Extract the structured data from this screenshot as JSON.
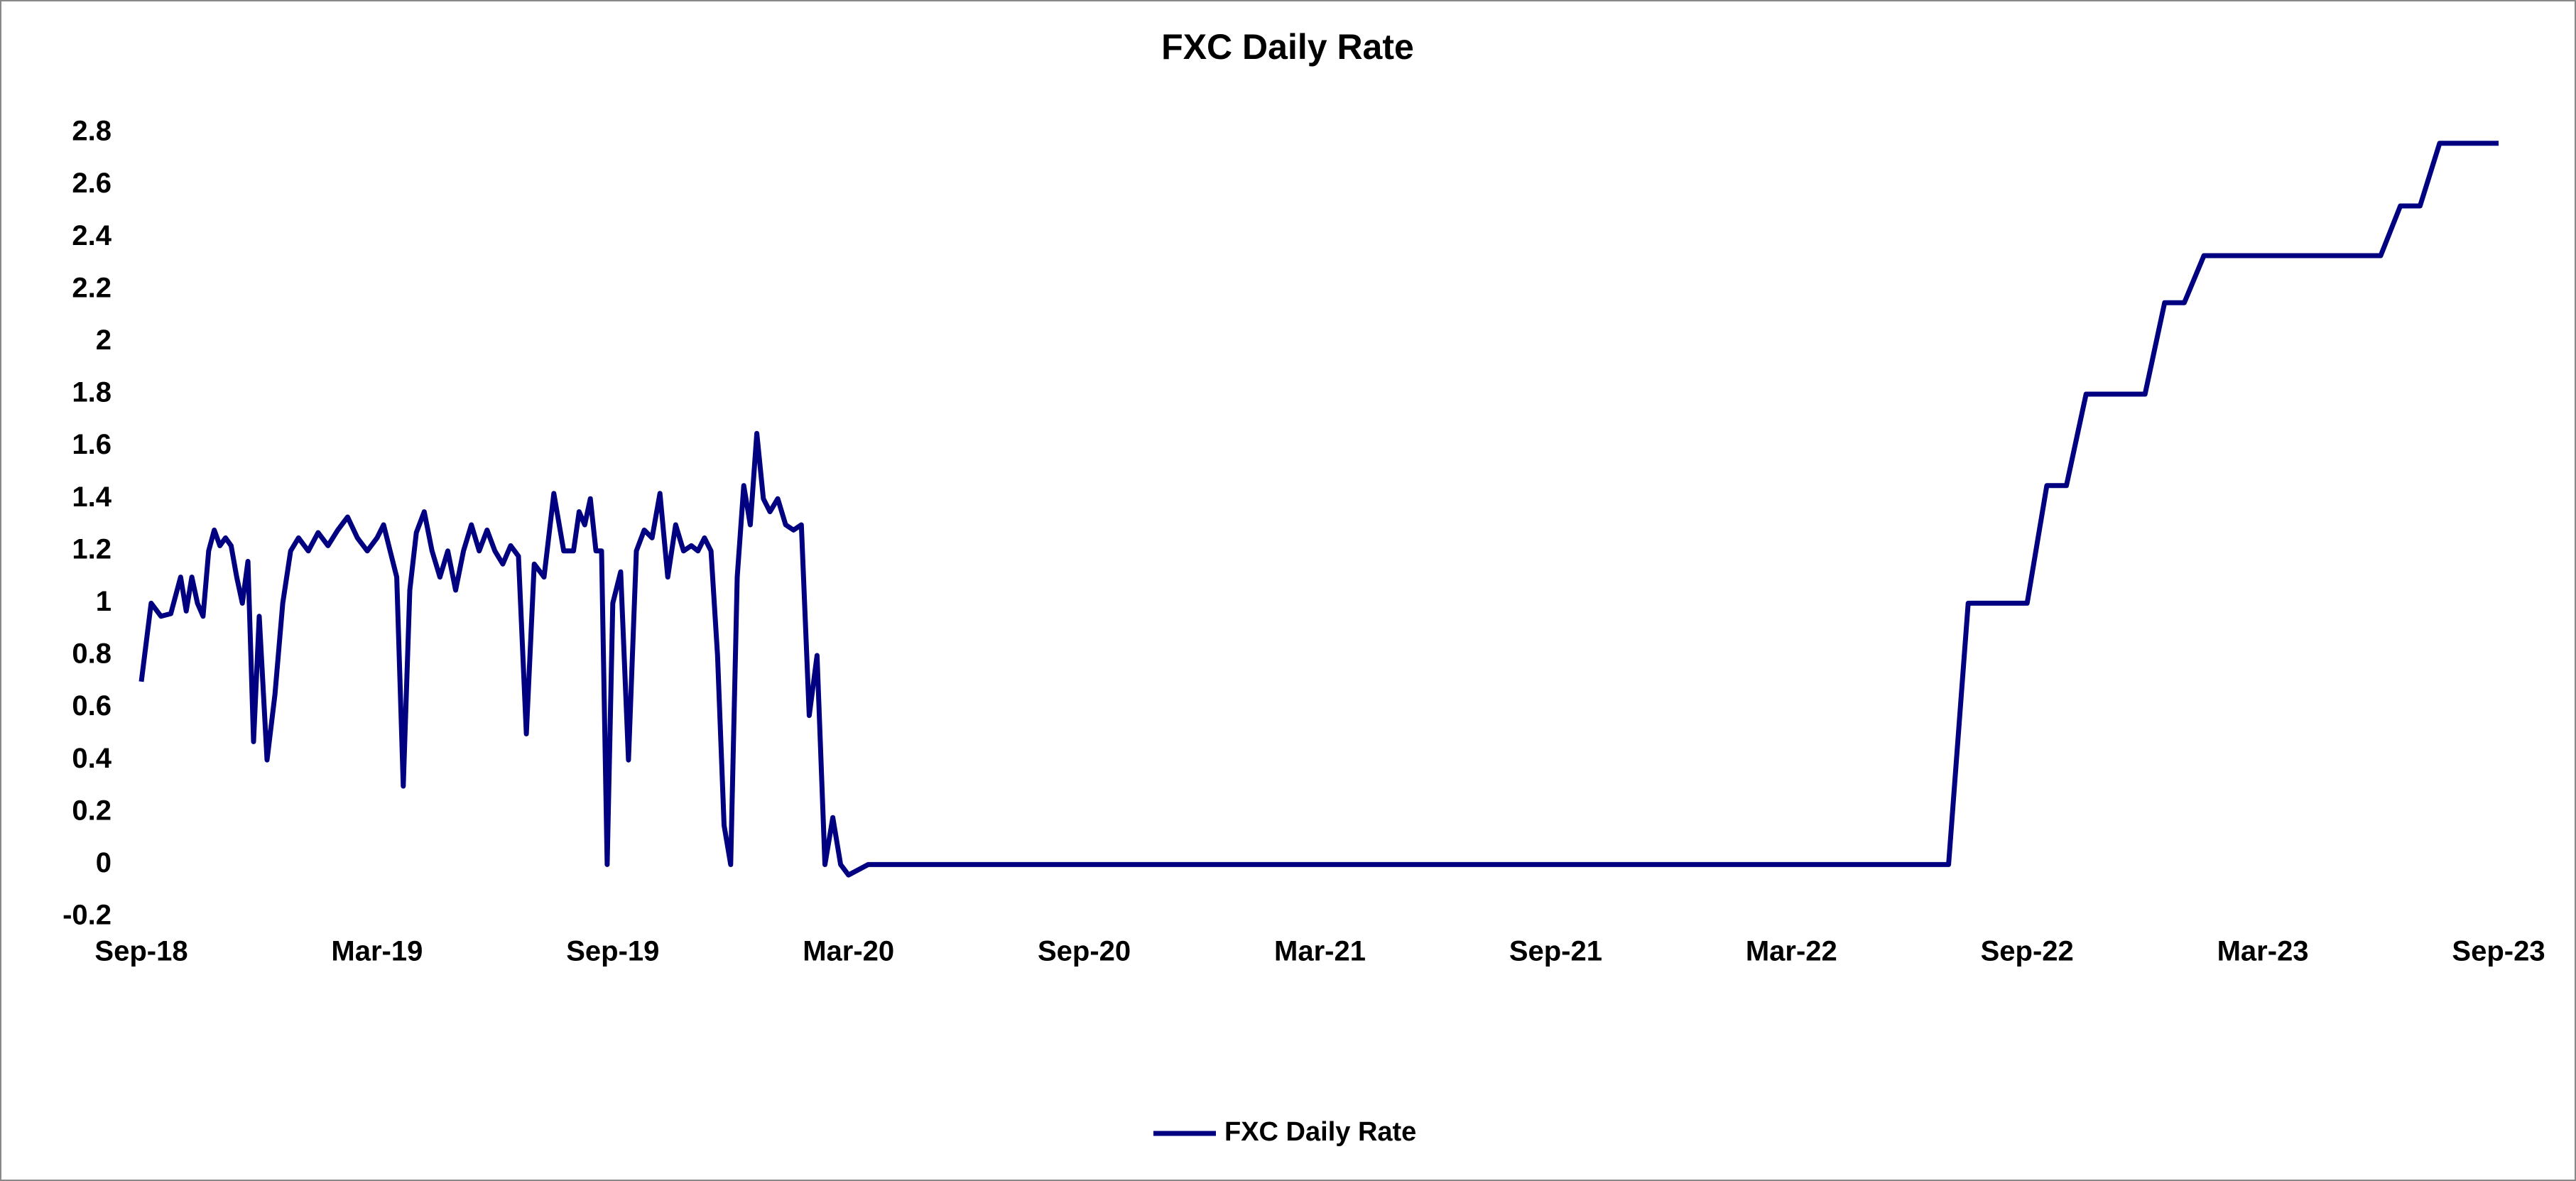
{
  "chart_data": {
    "type": "line",
    "title": "FXC Daily Rate",
    "x": [
      "2018-09",
      "2018-09",
      "2018-09",
      "2018-09",
      "2018-10",
      "2018-10",
      "2018-10",
      "2018-10",
      "2018-10",
      "2018-10",
      "2018-10",
      "2018-11",
      "2018-11",
      "2018-11",
      "2018-11",
      "2018-11",
      "2018-11",
      "2018-11",
      "2018-12",
      "2018-12",
      "2018-12",
      "2018-12",
      "2018-12",
      "2019-01",
      "2019-01",
      "2019-01",
      "2019-01",
      "2019-02",
      "2019-02",
      "2019-02",
      "2019-02",
      "2019-03",
      "2019-03",
      "2019-03",
      "2019-03",
      "2019-03",
      "2019-03",
      "2019-04",
      "2019-04",
      "2019-04",
      "2019-04",
      "2019-04",
      "2019-05",
      "2019-05",
      "2019-05",
      "2019-05",
      "2019-05",
      "2019-06",
      "2019-06",
      "2019-06",
      "2019-06",
      "2019-06",
      "2019-07",
      "2019-07",
      "2019-07",
      "2019-07",
      "2019-08",
      "2019-08",
      "2019-08",
      "2019-08",
      "2019-08",
      "2019-08",
      "2019-08",
      "2019-09",
      "2019-09",
      "2019-09",
      "2019-09",
      "2019-09",
      "2019-10",
      "2019-10",
      "2019-10",
      "2019-10",
      "2019-10",
      "2019-11",
      "2019-11",
      "2019-11",
      "2019-11",
      "2019-11",
      "2019-11",
      "2019-12",
      "2019-12",
      "2019-12",
      "2019-12",
      "2019-12",
      "2019-12",
      "2020-01",
      "2020-01",
      "2020-01",
      "2020-01",
      "2020-01",
      "2020-02",
      "2020-02",
      "2020-02",
      "2020-02",
      "2020-02",
      "2020-03",
      "2020-03",
      "2020-04",
      "2020-05",
      "2020-06",
      "2020-07",
      "2020-08",
      "2020-09",
      "2020-10",
      "2020-11",
      "2020-12",
      "2021-01",
      "2021-02",
      "2021-03",
      "2021-04",
      "2021-05",
      "2021-06",
      "2021-07",
      "2021-08",
      "2021-09",
      "2021-10",
      "2021-11",
      "2021-12",
      "2022-01",
      "2022-02",
      "2022-03",
      "2022-04",
      "2022-05",
      "2022-06",
      "2022-07",
      "2022-07",
      "2022-08",
      "2022-09",
      "2022-09",
      "2022-10",
      "2022-10",
      "2022-11",
      "2022-12",
      "2022-12",
      "2023-01",
      "2023-01",
      "2023-02",
      "2023-03",
      "2023-04",
      "2023-05",
      "2023-06",
      "2023-06",
      "2023-07",
      "2023-07",
      "2023-08",
      "2023-09"
    ],
    "series": [
      {
        "name": "FXC Daily Rate",
        "color": "#000080",
        "values": [
          0.7,
          1.0,
          0.95,
          0.96,
          1.1,
          0.97,
          1.1,
          1.0,
          0.95,
          1.2,
          1.28,
          1.22,
          1.25,
          1.22,
          1.1,
          1.0,
          1.16,
          0.47,
          0.95,
          0.4,
          0.65,
          1.0,
          1.2,
          1.25,
          1.2,
          1.27,
          1.22,
          1.28,
          1.33,
          1.25,
          1.2,
          1.25,
          1.3,
          1.2,
          1.1,
          0.3,
          1.05,
          1.27,
          1.35,
          1.2,
          1.1,
          1.2,
          1.05,
          1.2,
          1.3,
          1.2,
          1.28,
          1.2,
          1.15,
          1.22,
          1.18,
          0.5,
          1.15,
          1.1,
          1.42,
          1.2,
          1.2,
          1.35,
          1.3,
          1.4,
          1.2,
          1.2,
          0,
          1.0,
          1.12,
          0.4,
          1.2,
          1.28,
          1.25,
          1.42,
          1.1,
          1.3,
          1.2,
          1.22,
          1.2,
          1.25,
          1.2,
          0.8,
          0.15,
          0,
          1.1,
          1.45,
          1.3,
          1.65,
          1.4,
          1.35,
          1.4,
          1.3,
          1.28,
          1.3,
          0.57,
          0.8,
          0,
          0.18,
          0,
          -0.04,
          0,
          0,
          0,
          0,
          0,
          0,
          0,
          0,
          0,
          0,
          0,
          0,
          0,
          0,
          0,
          0,
          0,
          0,
          0,
          0,
          0,
          0,
          0,
          0,
          0,
          0,
          0,
          0,
          0,
          1.0,
          1.0,
          1.0,
          1.45,
          1.45,
          1.8,
          1.8,
          1.8,
          2.15,
          2.15,
          2.33,
          2.33,
          2.33,
          2.33,
          2.33,
          2.33,
          2.52,
          2.52,
          2.76,
          2.76,
          2.76
        ]
      }
    ],
    "xlim": [
      "2018-09",
      "2023-09"
    ],
    "xticks": [
      {
        "value": "2018-09",
        "label": "Sep-18"
      },
      {
        "value": "2019-03",
        "label": "Mar-19"
      },
      {
        "value": "2019-09",
        "label": "Sep-19"
      },
      {
        "value": "2020-03",
        "label": "Mar-20"
      },
      {
        "value": "2020-09",
        "label": "Sep-20"
      },
      {
        "value": "2021-03",
        "label": "Mar-21"
      },
      {
        "value": "2021-09",
        "label": "Sep-21"
      },
      {
        "value": "2022-03",
        "label": "Mar-22"
      },
      {
        "value": "2022-09",
        "label": "Sep-22"
      },
      {
        "value": "2023-03",
        "label": "Mar-23"
      },
      {
        "value": "2023-09",
        "label": "Sep-23"
      }
    ],
    "ylim": [
      -0.2,
      2.8
    ],
    "yticks": [
      -0.2,
      0,
      0.2,
      0.4,
      0.6,
      0.8,
      1,
      1.2,
      1.4,
      1.6,
      1.8,
      2,
      2.2,
      2.4,
      2.6,
      2.8
    ],
    "grid": false,
    "legend": "bottom"
  }
}
